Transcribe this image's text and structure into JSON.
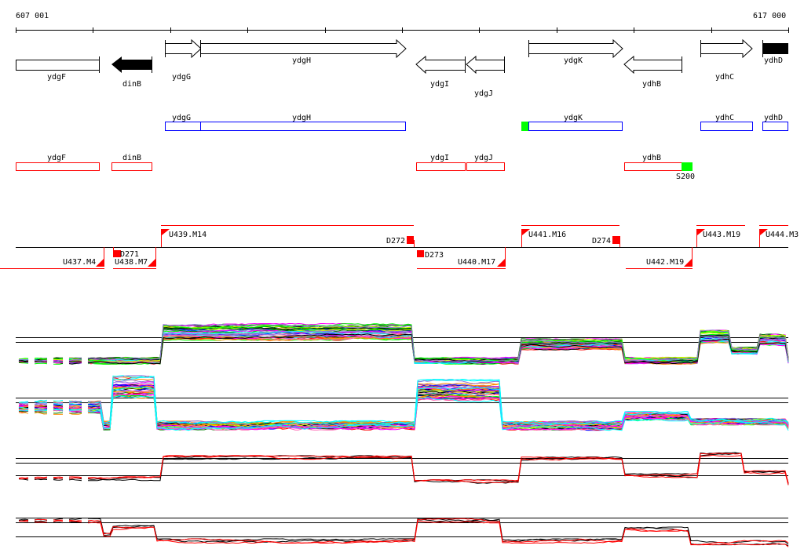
{
  "axis": {
    "start_label": "607 001",
    "end_label": "617 000"
  },
  "genes": [
    {
      "name": "ydgF",
      "strand": "none",
      "fill": "white"
    },
    {
      "name": "dinB",
      "strand": "-",
      "fill": "black"
    },
    {
      "name": "ydgG",
      "strand": "+",
      "fill": "white"
    },
    {
      "name": "ydgH",
      "strand": "+",
      "fill": "white"
    },
    {
      "name": "ydgI",
      "strand": "-",
      "fill": "white"
    },
    {
      "name": "ydgJ",
      "strand": "-",
      "fill": "white"
    },
    {
      "name": "ydgK",
      "strand": "+",
      "fill": "white"
    },
    {
      "name": "ydhB",
      "strand": "-",
      "fill": "white"
    },
    {
      "name": "ydhC",
      "strand": "+",
      "fill": "white"
    },
    {
      "name": "ydhD",
      "strand": "+",
      "fill": "black"
    }
  ],
  "forward_track": [
    "ydgG",
    "ydgH",
    "ydgK",
    "ydhC",
    "ydhD"
  ],
  "reverse_track": [
    "ydgF",
    "dinB",
    "ydgI",
    "ydgJ",
    "ydhB"
  ],
  "feature_label": "S200",
  "units": {
    "upper": [
      "U439.M14",
      "U441.M16",
      "U443.M19",
      "U444.M3"
    ],
    "lower": [
      "U437.M4",
      "U438.M7",
      "U440.M17",
      "U442.M19"
    ],
    "downstream": [
      "D271",
      "D272",
      "D273",
      "D274"
    ]
  },
  "colors": {
    "forward": "#0000ff",
    "reverse": "#ff0000",
    "highlight": "#00ff00",
    "unit": "#ff0000"
  },
  "line_palette": [
    "#ff0000",
    "#ff00ff",
    "#00ff00",
    "#0000ff",
    "#00ffff",
    "#ff8c00",
    "#808080",
    "#ccff00",
    "#000000",
    "#9370db",
    "#ff69b4",
    "#008000"
  ]
}
